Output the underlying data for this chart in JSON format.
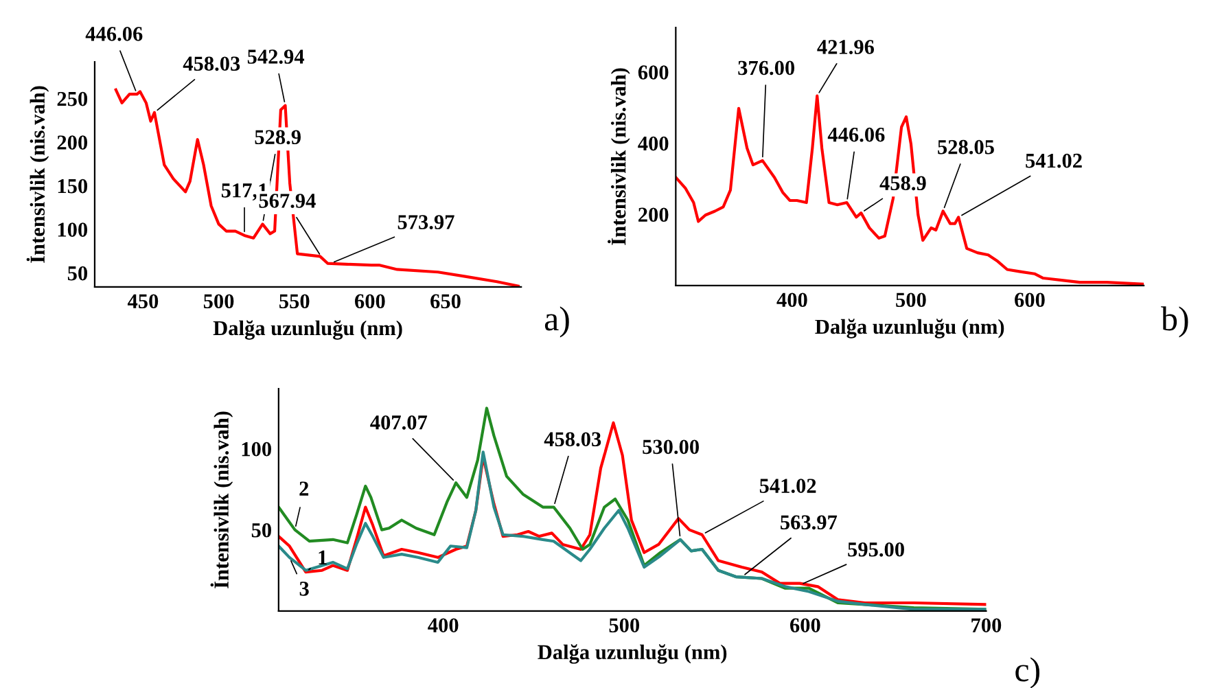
{
  "chart_data": [
    {
      "type": "line",
      "xlabel": "Dalğa uzunluğu (nm)",
      "ylabel": "İntensivlik (nis.vah)",
      "xlim": [
        418,
        700
      ],
      "ylim": [
        34,
        292
      ],
      "xticks": [
        450,
        500,
        550,
        600,
        650
      ],
      "yticks": [
        50,
        100,
        150,
        200,
        250
      ],
      "grid": false,
      "legend": false,
      "series": [
        {
          "color": "#ff0000",
          "x": [
            432,
            436,
            441,
            446,
            448,
            452,
            455,
            457.5,
            460,
            464,
            470,
            478,
            481,
            486,
            490,
            495,
            500,
            505,
            511,
            517,
            523,
            529,
            534,
            537,
            541,
            544,
            547,
            552,
            567,
            572,
            585,
            601,
            606,
            618,
            645,
            663,
            684,
            698
          ],
          "values": [
            260,
            245,
            255,
            255,
            258,
            245,
            224,
            234,
            211,
            174,
            158,
            143,
            155,
            203,
            174,
            127,
            106,
            98,
            98,
            93,
            90,
            106,
            95,
            98,
            237,
            242,
            153,
            72,
            69,
            61,
            60,
            59,
            59,
            54,
            51,
            46,
            40,
            35
          ]
        }
      ],
      "annotations": [
        {
          "text": "446.06",
          "x": 446,
          "y": 255
        },
        {
          "text": "458.03",
          "x": 457.5,
          "y": 234
        },
        {
          "text": "542.94",
          "x": 544,
          "y": 242
        },
        {
          "text": "528.9",
          "x": 529,
          "y": 106
        },
        {
          "text": "517,1",
          "x": 517,
          "y": 93
        },
        {
          "text": "567.94",
          "x": 568,
          "y": 68
        },
        {
          "text": "573.97",
          "x": 574,
          "y": 61
        },
        "a)"
      ]
    },
    {
      "type": "line",
      "xlabel": "Dalğa uzunluğu (nm)",
      "ylabel": "İntensivlik (nis.vah)",
      "xlim": [
        302,
        696
      ],
      "ylim": [
        0,
        725
      ],
      "xticks": [
        400,
        500,
        600
      ],
      "yticks": [
        200,
        400,
        600
      ],
      "grid": false,
      "legend": false,
      "series": [
        {
          "color": "#ff0000",
          "x": [
            302,
            310,
            317,
            321,
            327,
            335,
            342,
            348,
            355,
            362,
            367,
            375,
            385,
            392,
            398,
            404,
            412,
            417,
            421,
            425,
            431,
            438,
            446,
            454,
            458,
            465,
            473,
            478,
            485,
            492,
            496,
            500,
            506,
            510,
            517,
            521,
            527,
            533,
            537,
            540,
            547,
            556,
            565,
            573,
            581,
            592,
            604,
            611,
            627,
            642,
            665,
            696
          ],
          "values": [
            304,
            274,
            233,
            180,
            198,
            209,
            221,
            268,
            498,
            386,
            339,
            351,
            304,
            262,
            239,
            239,
            233,
            386,
            533,
            386,
            233,
            227,
            233,
            192,
            204,
            162,
            133,
            139,
            245,
            445,
            474,
            398,
            198,
            127,
            162,
            156,
            209,
            174,
            174,
            192,
            104,
            92,
            86,
            68,
            45,
            39,
            33,
            21,
            15,
            9,
            9,
            4
          ]
        }
      ],
      "annotations": [
        {
          "text": "376.00",
          "x": 375,
          "y": 351
        },
        {
          "text": "421.96",
          "x": 421,
          "y": 533
        },
        {
          "text": "446.06",
          "x": 446,
          "y": 233
        },
        {
          "text": "458.9",
          "x": 458,
          "y": 204
        },
        {
          "text": "528.05",
          "x": 527,
          "y": 209
        },
        {
          "text": "541.02",
          "x": 540,
          "y": 192
        },
        "b)"
      ]
    },
    {
      "type": "line",
      "xlabel": "Dalğa uzunluğu (nm)",
      "ylabel": "İntensivlik (nis.vah)",
      "xlim": [
        309,
        700
      ],
      "ylim": [
        0,
        137
      ],
      "xticks": [
        400,
        500,
        600,
        700
      ],
      "yticks": [
        50,
        100
      ],
      "grid": false,
      "legend": false,
      "series": [
        {
          "name": "1",
          "color": "#ff0000",
          "x": [
            309,
            315,
            324,
            333,
            339,
            347,
            352,
            357,
            361,
            367,
            377,
            386,
            397,
            407,
            413,
            418,
            422,
            428,
            433,
            441,
            447,
            453,
            460,
            466,
            476,
            481,
            487,
            494,
            499,
            504,
            511,
            519,
            530,
            536,
            543,
            552,
            565,
            576,
            586,
            597,
            607,
            618,
            633,
            660,
            700
          ],
          "values": [
            46,
            40,
            24,
            25,
            28,
            25,
            44,
            64,
            53,
            34,
            38,
            36,
            33,
            38,
            40,
            62,
            95,
            66,
            46,
            47,
            49,
            46,
            48,
            41,
            38,
            47,
            88,
            116,
            96,
            56,
            36,
            41,
            57,
            50,
            47,
            31,
            27,
            24,
            17,
            17,
            15,
            7,
            5,
            5,
            4
          ]
        },
        {
          "name": "2",
          "color": "#228b22",
          "x": [
            309,
            318,
            326,
            339,
            347,
            352,
            357,
            360,
            366,
            370,
            377,
            385,
            395,
            402,
            407,
            413,
            419,
            424,
            428,
            435,
            444,
            455,
            461,
            470,
            477,
            481,
            489,
            495,
            502,
            511,
            520,
            531,
            537,
            543,
            552,
            562,
            576,
            589,
            602,
            618,
            633,
            660,
            700
          ],
          "values": [
            64,
            50,
            43,
            44,
            42,
            59,
            77,
            70,
            50,
            51,
            56,
            51,
            47,
            67,
            79,
            70,
            93,
            125,
            108,
            83,
            72,
            64,
            64,
            51,
            38,
            41,
            64,
            69,
            56,
            28,
            36,
            44,
            37,
            38,
            25,
            21,
            20,
            14,
            14,
            5,
            4,
            2,
            1
          ]
        },
        {
          "name": "3",
          "color": "#2a8a8a",
          "x": [
            309,
            315,
            324,
            339,
            347,
            352,
            357,
            361,
            367,
            377,
            386,
            397,
            404,
            413,
            418,
            422,
            428,
            433,
            444,
            455,
            461,
            476,
            481,
            489,
            497,
            502,
            511,
            520,
            531,
            537,
            543,
            552,
            562,
            576,
            589,
            602,
            618,
            633,
            660,
            700
          ],
          "values": [
            40,
            33,
            25,
            30,
            26,
            41,
            54,
            46,
            33,
            35,
            33,
            30,
            40,
            39,
            62,
            98,
            64,
            47,
            46,
            44,
            43,
            31,
            38,
            51,
            62,
            51,
            27,
            34,
            44,
            37,
            38,
            25,
            21,
            20,
            15,
            12,
            6,
            4,
            1,
            1
          ]
        }
      ],
      "annotations": [
        {
          "text": "407.07",
          "x": 407,
          "y": 79
        },
        {
          "text": "458.03",
          "x": 461,
          "y": 64
        },
        {
          "text": "530.00",
          "x": 531,
          "y": 44
        },
        {
          "text": "541.02",
          "x": 543,
          "y": 47
        },
        {
          "text": "563.97",
          "x": 565,
          "y": 21
        },
        {
          "text": "595.00",
          "x": 597,
          "y": 16
        },
        "c)"
      ]
    }
  ]
}
